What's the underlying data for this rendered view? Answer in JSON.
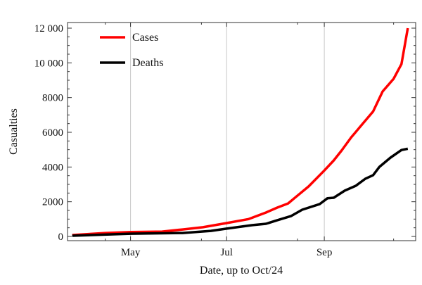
{
  "chart_data": {
    "type": "line",
    "title": "",
    "xlabel": "Date, up to Oct/24",
    "ylabel": "Casualties",
    "xlim": [
      "Mar 22",
      "Oct 29"
    ],
    "ylim": [
      0,
      12000
    ],
    "x_ticks": [
      "May",
      "Jul",
      "Sep"
    ],
    "x_tick_dates": [
      "May 1",
      "Jul 1",
      "Sep 1"
    ],
    "y_ticks": [
      0,
      2000,
      4000,
      6000,
      8000,
      10000,
      12000
    ],
    "y_tick_labels": [
      "0",
      "2000",
      "4000",
      "6000",
      "8000",
      "10 000",
      "12 000"
    ],
    "grid": "vertical lines at major x ticks",
    "legend_position": "top-left",
    "series": [
      {
        "name": "Cases",
        "color": "#ff0000",
        "x": [
          "Mar 25",
          "Apr 15",
          "May 1",
          "May 21",
          "Jun 3",
          "Jun 16",
          "Jul 1",
          "Jul 15",
          "Jul 26",
          "Aug 2",
          "Aug 9",
          "Aug 13",
          "Aug 22",
          "Sep 1",
          "Sep 7",
          "Sep 12",
          "Sep 18",
          "Sep 25",
          "Oct 2",
          "Oct 8",
          "Oct 15",
          "Oct 20",
          "Oct 24"
        ],
        "values": [
          80,
          200,
          250,
          280,
          400,
          530,
          770,
          1000,
          1380,
          1660,
          1900,
          2200,
          2880,
          3800,
          4380,
          4950,
          5700,
          6450,
          7200,
          8350,
          9080,
          9930,
          12000
        ]
      },
      {
        "name": "Deaths",
        "color": "#000000",
        "x": [
          "Mar 25",
          "May 1",
          "Jun 3",
          "Jun 21",
          "Jul 1",
          "Jul 17",
          "Jul 26",
          "Aug 2",
          "Aug 11",
          "Aug 18",
          "Aug 29",
          "Sep 3",
          "Sep 7",
          "Sep 14",
          "Sep 21",
          "Sep 27",
          "Oct 2",
          "Oct 6",
          "Oct 13",
          "Oct 20",
          "Oct 24"
        ],
        "values": [
          40,
          160,
          200,
          320,
          450,
          650,
          730,
          930,
          1180,
          1540,
          1860,
          2200,
          2230,
          2640,
          2920,
          3320,
          3530,
          4010,
          4540,
          4980,
          5050
        ]
      }
    ]
  }
}
